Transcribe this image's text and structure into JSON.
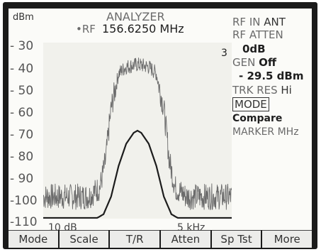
{
  "header": {
    "unit": "dBm",
    "title": "ANALYZER",
    "freq_prefix": "•RF",
    "freq_value": "156.6250 MHz"
  },
  "y_axis": {
    "labels": [
      "- 30",
      "- 40",
      "- 50",
      "- 60",
      "- 70",
      "- 80",
      "- 90",
      "-100",
      "-110"
    ]
  },
  "trace_marker": "3",
  "bottom_info": {
    "scale": "10 dB",
    "span": "5 kHz"
  },
  "right_panel": {
    "rf_in_label": "RF IN",
    "rf_in_value": "ANT",
    "rf_atten_label": "RF ATTEN",
    "rf_atten_value": "0dB",
    "gen_label": "GEN",
    "gen_value": "Off",
    "gen_level": "- 29.5 dBm",
    "trk_res_label": "TRK RES",
    "trk_res_value": "Hi",
    "mode_label": "MODE",
    "mode_value": "Compare",
    "marker_label": "MARKER MHz"
  },
  "softkeys": [
    "Mode",
    "Scale",
    "T/R",
    "Atten",
    "Sp Tst",
    "More"
  ],
  "chart_data": {
    "type": "line",
    "ylabel": "dBm",
    "ylim": [
      -110,
      -30
    ],
    "span": "5 kHz",
    "series": [
      {
        "x": [
          0,
          0.08,
          0.16,
          0.24,
          0.3,
          0.33,
          0.36,
          0.4,
          0.44,
          0.5,
          0.56,
          0.6,
          0.64,
          0.67,
          0.7,
          0.76,
          0.84,
          0.92,
          1.0
        ],
        "values": [
          -100,
          -100,
          -100,
          -100,
          -96,
          -84,
          -60,
          -44,
          -41,
          -40,
          -41,
          -44,
          -60,
          -84,
          -96,
          -100,
          -100,
          -100,
          -100
        ]
      },
      {
        "x": [
          0,
          0.1,
          0.2,
          0.28,
          0.32,
          0.36,
          0.4,
          0.44,
          0.48,
          0.5,
          0.52,
          0.56,
          0.6,
          0.64,
          0.68,
          0.72,
          0.8,
          0.9,
          1.0
        ],
        "values": [
          -110,
          -110,
          -110,
          -110,
          -108,
          -100,
          -86,
          -76,
          -71,
          -70,
          -71,
          -76,
          -86,
          -100,
          -108,
          -110,
          -110,
          -110,
          -110
        ]
      }
    ]
  }
}
